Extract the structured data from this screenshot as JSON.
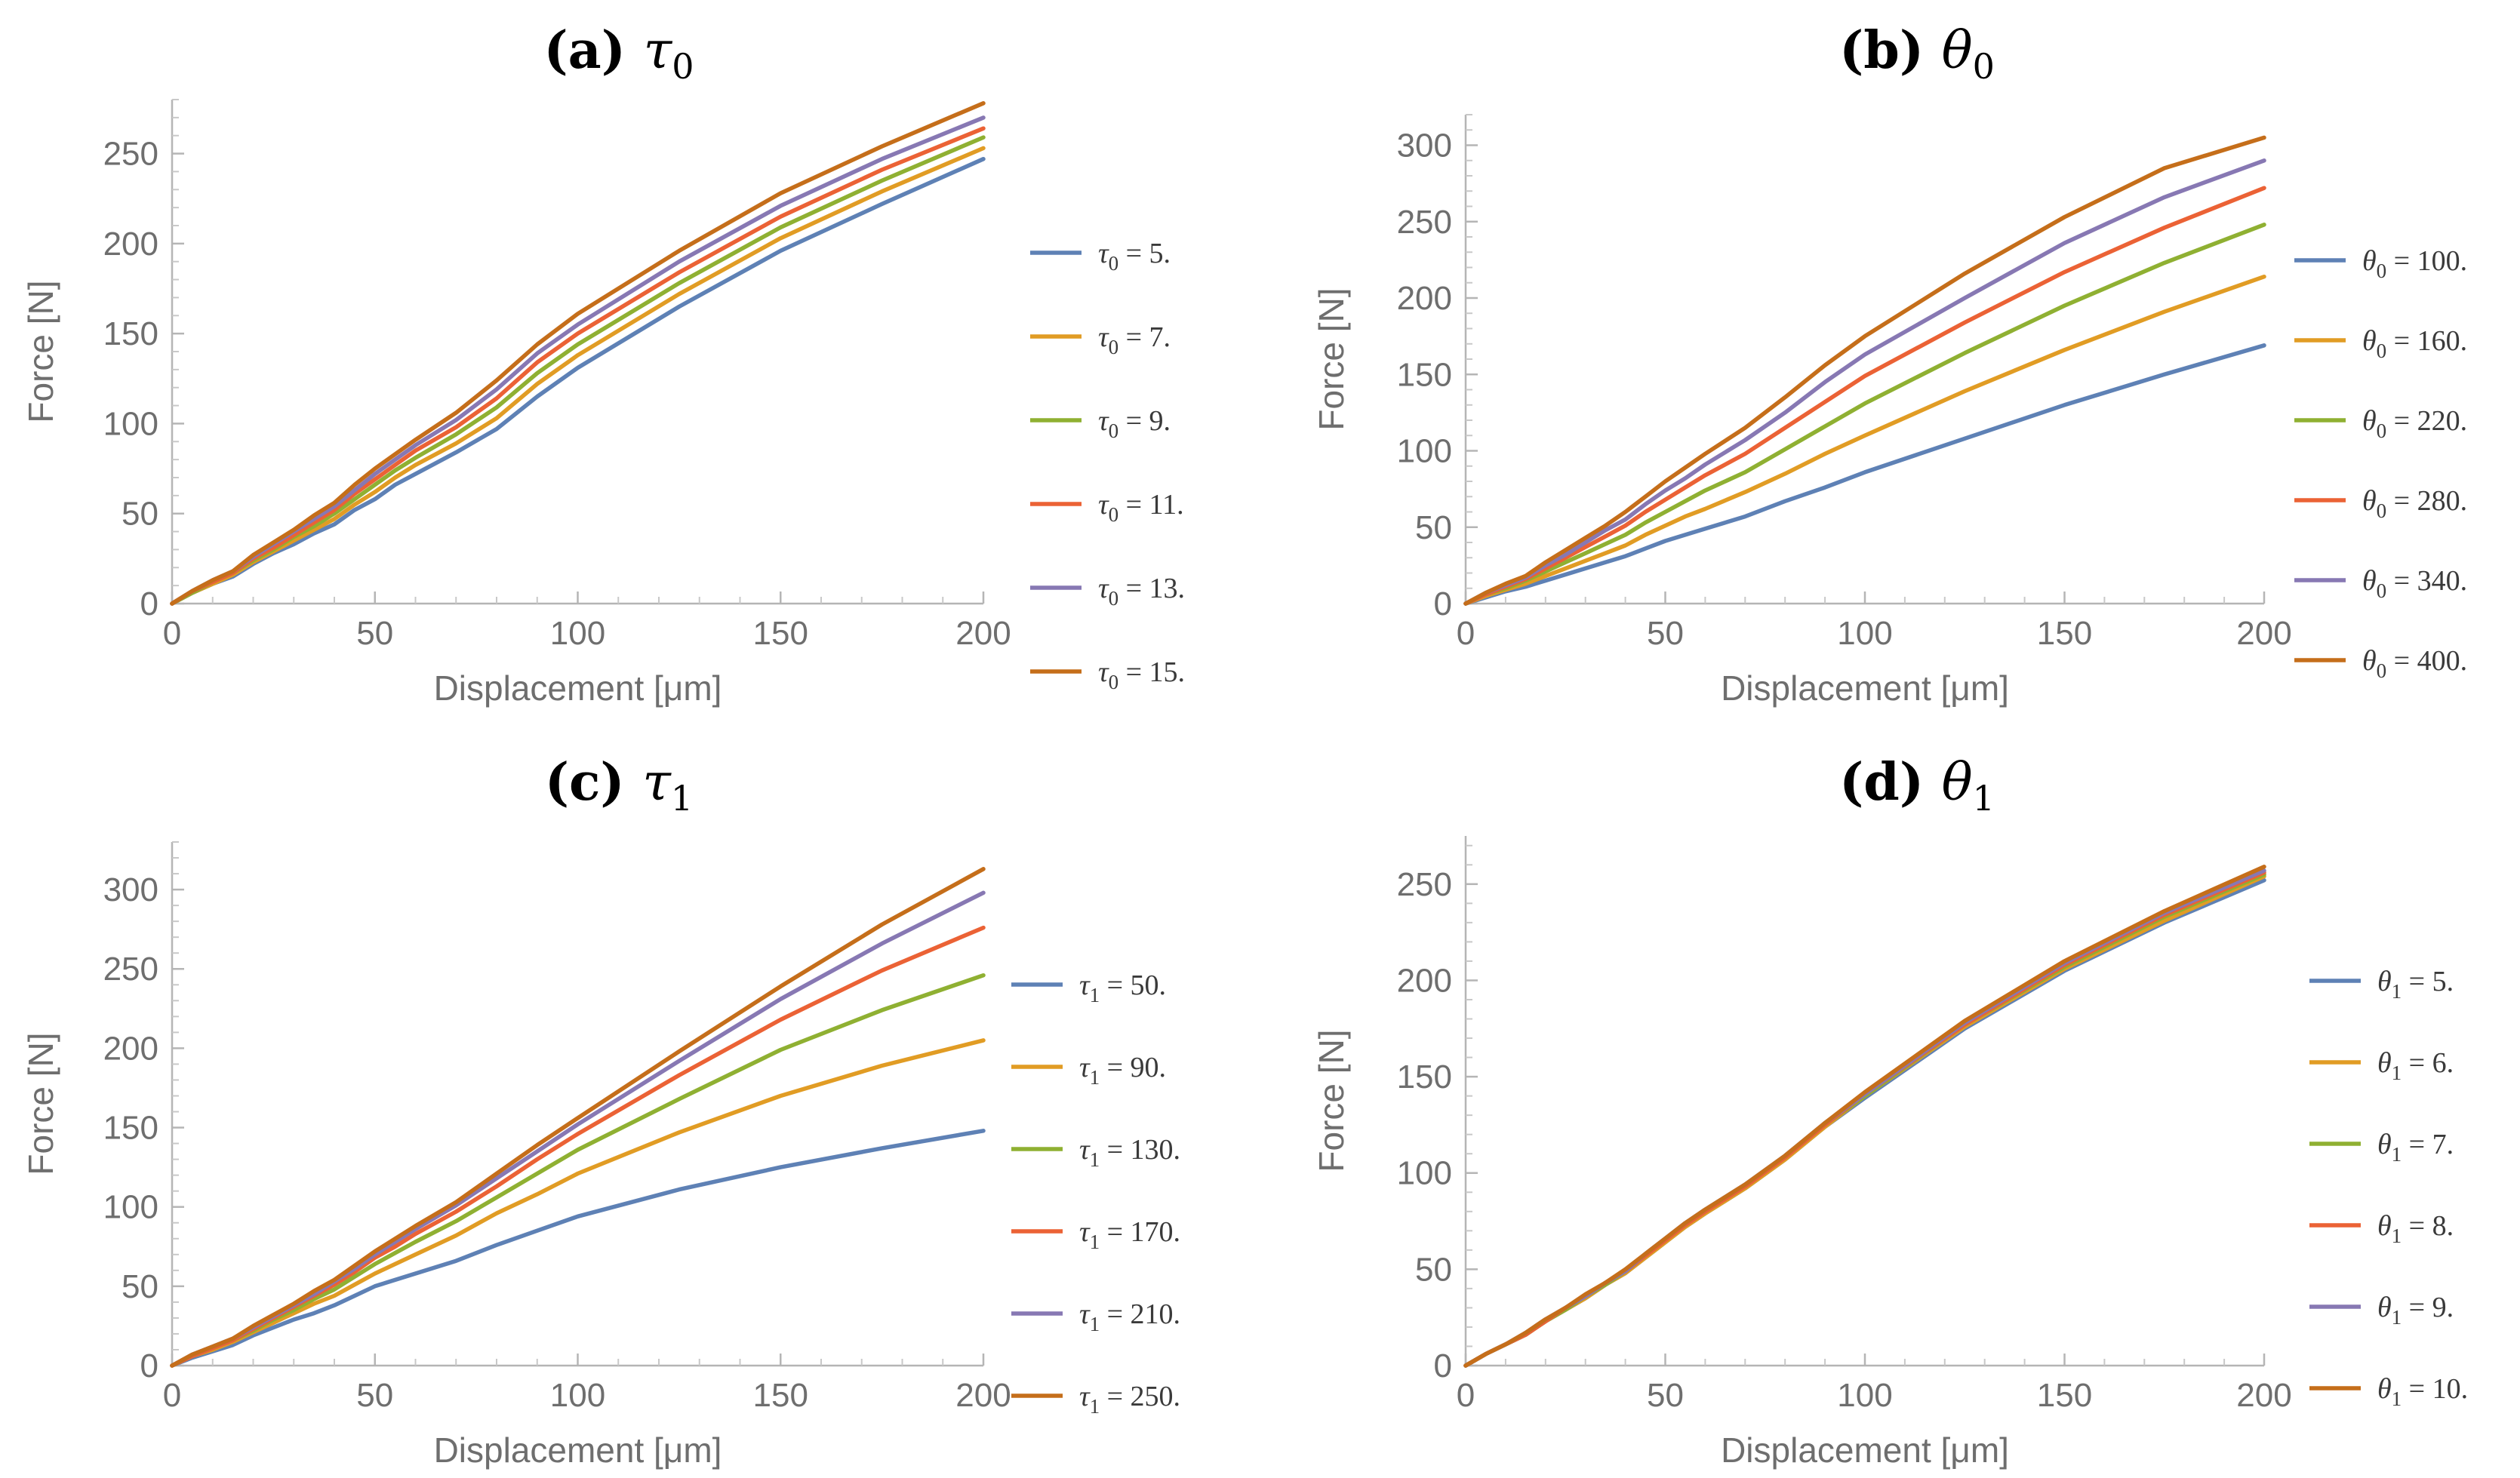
{
  "colors": [
    "#5e81b5",
    "#e19c24",
    "#8fb032",
    "#eb6235",
    "#8778b3",
    "#c56e1a"
  ],
  "chart_data": [
    {
      "type": "line",
      "title": {
        "bold": "(a)",
        "symbol": "τ",
        "sub": "0"
      },
      "xlabel": "Displacement [μm]",
      "ylabel": "Force [N]",
      "xlim": [
        0,
        200
      ],
      "ylim": [
        0,
        280
      ],
      "xticks": [
        0,
        50,
        100,
        150,
        200
      ],
      "yticks": [
        0,
        50,
        100,
        150,
        200,
        250
      ],
      "legend_position": "right",
      "x": [
        0,
        5,
        10,
        15,
        20,
        25,
        30,
        35,
        40,
        45,
        50,
        55,
        60,
        70,
        80,
        90,
        100,
        125,
        150,
        175,
        200
      ],
      "series": [
        {
          "name": {
            "sym": "τ",
            "sub": "0",
            "val": "5."
          },
          "values": [
            0,
            6,
            11,
            15,
            22,
            28,
            33,
            39,
            44,
            52,
            58,
            66,
            72,
            84,
            97,
            115,
            131,
            165,
            196,
            222,
            247
          ]
        },
        {
          "name": {
            "sym": "τ",
            "sub": "0",
            "val": "7."
          },
          "values": [
            0,
            6,
            11,
            16,
            23,
            29,
            35,
            41,
            47,
            55,
            62,
            70,
            77,
            89,
            103,
            122,
            138,
            172,
            203,
            229,
            253
          ]
        },
        {
          "name": {
            "sym": "τ",
            "sub": "0",
            "val": "9."
          },
          "values": [
            0,
            6,
            12,
            17,
            24,
            30,
            37,
            43,
            50,
            58,
            66,
            74,
            81,
            94,
            109,
            128,
            144,
            178,
            209,
            235,
            259
          ]
        },
        {
          "name": {
            "sym": "τ",
            "sub": "0",
            "val": "11."
          },
          "values": [
            0,
            7,
            12,
            17,
            25,
            31,
            38,
            45,
            52,
            61,
            69,
            77,
            85,
            98,
            114,
            134,
            150,
            184,
            215,
            241,
            264
          ]
        },
        {
          "name": {
            "sym": "τ",
            "sub": "0",
            "val": "13."
          },
          "values": [
            0,
            7,
            13,
            18,
            26,
            33,
            40,
            47,
            54,
            63,
            72,
            80,
            88,
            102,
            119,
            139,
            155,
            190,
            221,
            247,
            270
          ]
        },
        {
          "name": {
            "sym": "τ",
            "sub": "0",
            "val": "15."
          },
          "values": [
            0,
            7,
            13,
            18,
            27,
            34,
            41,
            49,
            56,
            66,
            75,
            83,
            91,
            106,
            124,
            144,
            161,
            196,
            228,
            254,
            278
          ]
        }
      ]
    },
    {
      "type": "line",
      "title": {
        "bold": "(b)",
        "symbol": "θ",
        "sub": "0"
      },
      "xlabel": "Displacement [μm]",
      "ylabel": "Force [N]",
      "xlim": [
        0,
        200
      ],
      "ylim": [
        0,
        320
      ],
      "xticks": [
        0,
        50,
        100,
        150,
        200
      ],
      "yticks": [
        0,
        50,
        100,
        150,
        200,
        250,
        300
      ],
      "legend_position": "right",
      "x": [
        0,
        5,
        10,
        15,
        20,
        25,
        30,
        35,
        40,
        45,
        50,
        55,
        60,
        70,
        80,
        90,
        100,
        125,
        150,
        175,
        200
      ],
      "series": [
        {
          "name": {
            "sym": "θ",
            "sub": "0",
            "val": "100."
          },
          "values": [
            0,
            4,
            8,
            11,
            15,
            19,
            23,
            27,
            31,
            36,
            41,
            45,
            49,
            57,
            67,
            76,
            86,
            108,
            130,
            150,
            169
          ]
        },
        {
          "name": {
            "sym": "θ",
            "sub": "0",
            "val": "160."
          },
          "values": [
            0,
            5,
            9,
            13,
            18,
            23,
            28,
            33,
            38,
            45,
            51,
            57,
            62,
            73,
            85,
            98,
            110,
            139,
            166,
            191,
            214
          ]
        },
        {
          "name": {
            "sym": "θ",
            "sub": "0",
            "val": "220."
          },
          "values": [
            0,
            6,
            10,
            15,
            21,
            27,
            33,
            39,
            45,
            53,
            60,
            67,
            74,
            86,
            101,
            116,
            131,
            164,
            195,
            223,
            248
          ]
        },
        {
          "name": {
            "sym": "θ",
            "sub": "0",
            "val": "280."
          },
          "values": [
            0,
            6,
            11,
            16,
            23,
            30,
            37,
            44,
            51,
            60,
            68,
            76,
            84,
            98,
            115,
            132,
            149,
            184,
            217,
            246,
            272
          ]
        },
        {
          "name": {
            "sym": "θ",
            "sub": "0",
            "val": "340."
          },
          "values": [
            0,
            7,
            12,
            17,
            25,
            32,
            40,
            48,
            55,
            65,
            74,
            82,
            91,
            107,
            125,
            145,
            163,
            200,
            236,
            266,
            290
          ]
        },
        {
          "name": {
            "sym": "θ",
            "sub": "0",
            "val": "400."
          },
          "values": [
            0,
            7,
            13,
            18,
            27,
            35,
            43,
            51,
            60,
            70,
            80,
            89,
            98,
            115,
            135,
            156,
            175,
            216,
            253,
            285,
            305
          ]
        }
      ]
    },
    {
      "type": "line",
      "title": {
        "bold": "(c)",
        "symbol": "τ",
        "sub": "1"
      },
      "xlabel": "Displacement [μm]",
      "ylabel": "Force [N]",
      "xlim": [
        0,
        200
      ],
      "ylim": [
        0,
        330
      ],
      "xticks": [
        0,
        50,
        100,
        150,
        200
      ],
      "yticks": [
        0,
        50,
        100,
        150,
        200,
        250,
        300
      ],
      "legend_position": "right",
      "x": [
        0,
        5,
        10,
        15,
        20,
        25,
        30,
        35,
        40,
        45,
        50,
        55,
        60,
        70,
        80,
        90,
        100,
        125,
        150,
        175,
        200
      ],
      "series": [
        {
          "name": {
            "sym": "τ",
            "sub": "1",
            "val": "50."
          },
          "values": [
            0,
            5,
            9,
            13,
            19,
            24,
            29,
            33,
            38,
            44,
            50,
            54,
            58,
            66,
            76,
            85,
            94,
            111,
            125,
            137,
            148
          ]
        },
        {
          "name": {
            "sym": "τ",
            "sub": "1",
            "val": "90."
          },
          "values": [
            0,
            6,
            10,
            15,
            21,
            27,
            33,
            39,
            44,
            51,
            58,
            64,
            70,
            82,
            96,
            108,
            121,
            147,
            170,
            189,
            205
          ]
        },
        {
          "name": {
            "sym": "τ",
            "sub": "1",
            "val": "130."
          },
          "values": [
            0,
            6,
            11,
            16,
            22,
            29,
            35,
            42,
            48,
            56,
            64,
            71,
            78,
            91,
            106,
            121,
            136,
            168,
            199,
            224,
            246
          ]
        },
        {
          "name": {
            "sym": "τ",
            "sub": "1",
            "val": "170."
          },
          "values": [
            0,
            6,
            11,
            16,
            23,
            30,
            37,
            44,
            51,
            59,
            68,
            75,
            83,
            97,
            113,
            130,
            146,
            183,
            218,
            249,
            276
          ]
        },
        {
          "name": {
            "sym": "τ",
            "sub": "1",
            "val": "210."
          },
          "values": [
            0,
            7,
            12,
            17,
            24,
            31,
            38,
            45,
            53,
            61,
            70,
            78,
            86,
            101,
            118,
            135,
            152,
            192,
            231,
            266,
            298
          ]
        },
        {
          "name": {
            "sym": "τ",
            "sub": "1",
            "val": "250."
          },
          "values": [
            0,
            7,
            12,
            17,
            25,
            32,
            39,
            47,
            54,
            63,
            72,
            80,
            88,
            103,
            121,
            139,
            156,
            198,
            239,
            278,
            313
          ]
        }
      ]
    },
    {
      "type": "line",
      "title": {
        "bold": "(d)",
        "symbol": "θ",
        "sub": "1"
      },
      "xlabel": "Displacement [μm]",
      "ylabel": "Force [N]",
      "xlim": [
        0,
        200
      ],
      "ylim": [
        0,
        275
      ],
      "xticks": [
        0,
        50,
        100,
        150,
        200
      ],
      "yticks": [
        0,
        50,
        100,
        150,
        200,
        250
      ],
      "legend_position": "right",
      "x": [
        0,
        5,
        10,
        15,
        20,
        25,
        30,
        35,
        40,
        45,
        50,
        55,
        60,
        70,
        80,
        90,
        100,
        125,
        150,
        175,
        200
      ],
      "series": [
        {
          "name": {
            "sym": "θ",
            "sub": "1",
            "val": "5."
          },
          "values": [
            0,
            6,
            11,
            16,
            23,
            29,
            35,
            42,
            48,
            56,
            64,
            72,
            79,
            92,
            107,
            124,
            139,
            175,
            205,
            230,
            252
          ]
        },
        {
          "name": {
            "sym": "θ",
            "sub": "1",
            "val": "6."
          },
          "values": [
            0,
            6,
            11,
            16,
            23,
            29,
            35,
            42,
            48,
            56,
            64,
            72,
            79,
            92,
            107,
            124,
            140,
            176,
            206,
            231,
            254
          ]
        },
        {
          "name": {
            "sym": "θ",
            "sub": "1",
            "val": "7."
          },
          "values": [
            0,
            6,
            11,
            16,
            23,
            29,
            36,
            42,
            49,
            57,
            65,
            73,
            80,
            93,
            108,
            125,
            140,
            177,
            207,
            233,
            255
          ]
        },
        {
          "name": {
            "sym": "θ",
            "sub": "1",
            "val": "8."
          },
          "values": [
            0,
            6,
            11,
            16,
            23,
            30,
            36,
            43,
            49,
            57,
            65,
            73,
            80,
            93,
            108,
            125,
            141,
            177,
            208,
            234,
            256
          ]
        },
        {
          "name": {
            "sym": "θ",
            "sub": "1",
            "val": "9."
          },
          "values": [
            0,
            6,
            11,
            17,
            24,
            30,
            36,
            43,
            49,
            58,
            66,
            74,
            81,
            94,
            109,
            126,
            141,
            178,
            209,
            235,
            257
          ]
        },
        {
          "name": {
            "sym": "θ",
            "sub": "1",
            "val": "10."
          },
          "values": [
            0,
            6,
            11,
            17,
            24,
            30,
            37,
            43,
            50,
            58,
            66,
            74,
            81,
            94,
            109,
            126,
            142,
            179,
            210,
            236,
            259
          ]
        }
      ]
    }
  ]
}
